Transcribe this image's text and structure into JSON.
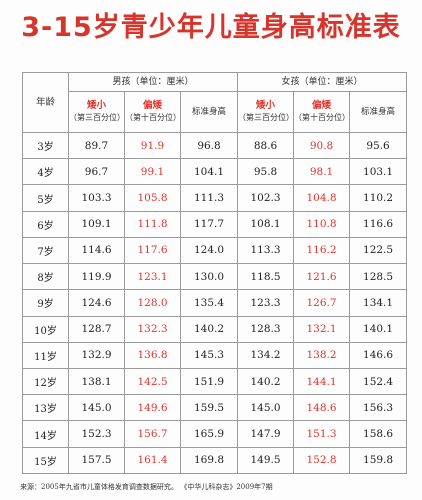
{
  "title": "3-15岁青少年儿童身高标准表",
  "table": {
    "age_header": "年龄",
    "boys_header": "男孩（单位：厘米）",
    "girls_header": "女孩（单位：厘米）",
    "dwarf_label": "矮小",
    "dwarf_note": "（第三百分位）",
    "short_label": "偏矮",
    "short_note": "（第十百分位）",
    "standard_label": "标准身高",
    "rows": [
      {
        "age": "3岁",
        "boy_dwarf": "89.7",
        "boy_short": "91.9",
        "boy_std": "96.8",
        "girl_dwarf": "88.6",
        "girl_short": "90.8",
        "girl_std": "95.6"
      },
      {
        "age": "4岁",
        "boy_dwarf": "96.7",
        "boy_short": "99.1",
        "boy_std": "104.1",
        "girl_dwarf": "95.8",
        "girl_short": "98.1",
        "girl_std": "103.1"
      },
      {
        "age": "5岁",
        "boy_dwarf": "103.3",
        "boy_short": "105.8",
        "boy_std": "111.3",
        "girl_dwarf": "102.3",
        "girl_short": "104.8",
        "girl_std": "110.2"
      },
      {
        "age": "6岁",
        "boy_dwarf": "109.1",
        "boy_short": "111.8",
        "boy_std": "117.7",
        "girl_dwarf": "108.1",
        "girl_short": "110.8",
        "girl_std": "116.6"
      },
      {
        "age": "7岁",
        "boy_dwarf": "114.6",
        "boy_short": "117.6",
        "boy_std": "124.0",
        "girl_dwarf": "113.3",
        "girl_short": "116.2",
        "girl_std": "122.5"
      },
      {
        "age": "8岁",
        "boy_dwarf": "119.9",
        "boy_short": "123.1",
        "boy_std": "130.0",
        "girl_dwarf": "118.5",
        "girl_short": "121.6",
        "girl_std": "128.5"
      },
      {
        "age": "9岁",
        "boy_dwarf": "124.6",
        "boy_short": "128.0",
        "boy_std": "135.4",
        "girl_dwarf": "123.3",
        "girl_short": "126.7",
        "girl_std": "134.1"
      },
      {
        "age": "10岁",
        "boy_dwarf": "128.7",
        "boy_short": "132.3",
        "boy_std": "140.2",
        "girl_dwarf": "128.3",
        "girl_short": "132.1",
        "girl_std": "140.1"
      },
      {
        "age": "11岁",
        "boy_dwarf": "132.9",
        "boy_short": "136.8",
        "boy_std": "145.3",
        "girl_dwarf": "134.2",
        "girl_short": "138.2",
        "girl_std": "146.6"
      },
      {
        "age": "12岁",
        "boy_dwarf": "138.1",
        "boy_short": "142.5",
        "boy_std": "151.9",
        "girl_dwarf": "140.2",
        "girl_short": "144.1",
        "girl_std": "152.4"
      },
      {
        "age": "13岁",
        "boy_dwarf": "145.0",
        "boy_short": "149.6",
        "boy_std": "159.5",
        "girl_dwarf": "145.0",
        "girl_short": "148.6",
        "girl_std": "156.3"
      },
      {
        "age": "14岁",
        "boy_dwarf": "152.3",
        "boy_short": "156.7",
        "boy_std": "165.9",
        "girl_dwarf": "147.9",
        "girl_short": "151.3",
        "girl_std": "158.6"
      },
      {
        "age": "15岁",
        "boy_dwarf": "157.5",
        "boy_short": "161.4",
        "boy_std": "169.8",
        "girl_dwarf": "149.5",
        "girl_short": "152.8",
        "girl_std": "159.8"
      }
    ]
  },
  "footnote": {
    "source": "来源：2005年九省市儿童体格发育调查数据研究。",
    "journal": "《中华儿科杂志》2009年7期"
  },
  "colors": {
    "title": "#d7342b",
    "highlight": "#e0342b"
  }
}
